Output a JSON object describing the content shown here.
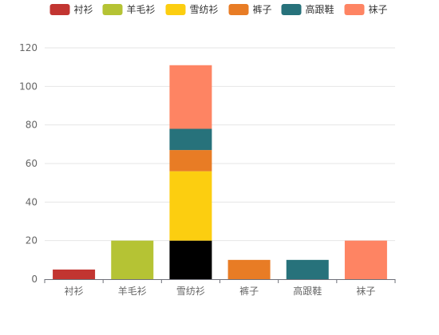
{
  "chart_data": {
    "type": "bar",
    "stacked": true,
    "categories": [
      "衬衫",
      "羊毛衫",
      "雪纺衫",
      "裤子",
      "高跟鞋",
      "袜子"
    ],
    "legend": [
      "衬衫",
      "羊毛衫",
      "雪纺衫",
      "裤子",
      "高跟鞋",
      "袜子"
    ],
    "legend_position": "top",
    "ylim": [
      0,
      120
    ],
    "yticks": [
      0,
      20,
      40,
      60,
      80,
      100,
      120
    ],
    "grid": true,
    "segments": [
      {
        "category": "衬衫",
        "from": 0,
        "to": 5,
        "color": "#c23531"
      },
      {
        "category": "羊毛衫",
        "from": 0,
        "to": 20,
        "color": "#b5c334"
      },
      {
        "category": "雪纺衫",
        "from": 0,
        "to": 20,
        "color": "#000000"
      },
      {
        "category": "雪纺衫",
        "from": 20,
        "to": 56,
        "color": "#fcce10"
      },
      {
        "category": "雪纺衫",
        "from": 56,
        "to": 67,
        "color": "#e87c25"
      },
      {
        "category": "雪纺衫",
        "from": 67,
        "to": 78,
        "color": "#27727b"
      },
      {
        "category": "雪纺衫",
        "from": 78,
        "to": 111,
        "color": "#fe8463"
      },
      {
        "category": "裤子",
        "from": 0,
        "to": 10,
        "color": "#e87c25"
      },
      {
        "category": "高跟鞋",
        "from": 0,
        "to": 10,
        "color": "#27727b"
      },
      {
        "category": "袜子",
        "from": 0,
        "to": 20,
        "color": "#fe8463"
      }
    ],
    "legend_colors": [
      "#c23531",
      "#b5c334",
      "#fcce10",
      "#e87c25",
      "#27727b",
      "#fe8463"
    ]
  }
}
